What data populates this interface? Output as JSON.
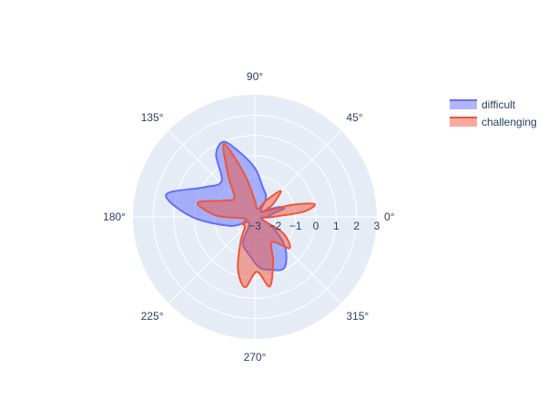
{
  "chart_data": {
    "type": "polar-area",
    "radial_axis": {
      "range": [
        -3,
        3
      ],
      "ticks": [
        -3,
        -2,
        -1,
        0,
        1,
        2,
        3
      ],
      "tick_labels": [
        "−3",
        "−2",
        "−1",
        "0",
        "1",
        "2",
        "3"
      ],
      "angle_deg": 0
    },
    "angular_axis": {
      "ticks_deg": [
        0,
        45,
        90,
        135,
        180,
        225,
        270,
        315
      ],
      "tick_labels": [
        "0°",
        "45°",
        "90°",
        "135°",
        "180°",
        "225°",
        "270°",
        "315°"
      ],
      "direction": "counterclockwise"
    },
    "background_color": "#e5ecf6",
    "grid": true,
    "legend": {
      "placement": "top-right"
    },
    "series": [
      {
        "name": "difficult",
        "line_color": "#636efa",
        "fill_color": "rgba(99,110,250,0.5)",
        "points": [
          {
            "theta": 0,
            "r": -2.4
          },
          {
            "theta": 10,
            "r": -2.1
          },
          {
            "theta": 16,
            "r": -1.5
          },
          {
            "theta": 22,
            "r": -1.7
          },
          {
            "theta": 30,
            "r": -2.3
          },
          {
            "theta": 45,
            "r": -2.6
          },
          {
            "theta": 60,
            "r": -1.9
          },
          {
            "theta": 75,
            "r": -1.5
          },
          {
            "theta": 90,
            "r": -0.6
          },
          {
            "theta": 105,
            "r": 0.4
          },
          {
            "theta": 113,
            "r": 1.0
          },
          {
            "theta": 122,
            "r": 0.6
          },
          {
            "theta": 133,
            "r": -0.6
          },
          {
            "theta": 150,
            "r": -0.1
          },
          {
            "theta": 166,
            "r": 1.5
          },
          {
            "theta": 180,
            "r": 0.1
          },
          {
            "theta": 200,
            "r": -1.7
          },
          {
            "theta": 225,
            "r": -2.6
          },
          {
            "theta": 245,
            "r": -1.6
          },
          {
            "theta": 262,
            "r": -1.1
          },
          {
            "theta": 275,
            "r": -0.5
          },
          {
            "theta": 286,
            "r": -0.3
          },
          {
            "theta": 300,
            "r": -0.1
          },
          {
            "theta": 315,
            "r": -0.9
          },
          {
            "theta": 330,
            "r": -2.0
          },
          {
            "theta": 345,
            "r": -2.7
          }
        ]
      },
      {
        "name": "challenging",
        "line_color": "#ef553b",
        "fill_color": "rgba(239,85,59,0.5)",
        "points": [
          {
            "theta": 0,
            "r": -2.1
          },
          {
            "theta": 6,
            "r": -0.6
          },
          {
            "theta": 12,
            "r": 0.0
          },
          {
            "theta": 18,
            "r": -1.1
          },
          {
            "theta": 27,
            "r": -2.4
          },
          {
            "theta": 35,
            "r": -1.9
          },
          {
            "theta": 45,
            "r": -1.2
          },
          {
            "theta": 55,
            "r": -2.0
          },
          {
            "theta": 70,
            "r": -2.6
          },
          {
            "theta": 90,
            "r": -2.2
          },
          {
            "theta": 104,
            "r": -0.8
          },
          {
            "theta": 113,
            "r": 0.9
          },
          {
            "theta": 123,
            "r": -0.6
          },
          {
            "theta": 136,
            "r": -1.6
          },
          {
            "theta": 150,
            "r": -1.4
          },
          {
            "theta": 166,
            "r": -0.1
          },
          {
            "theta": 178,
            "r": -1.1
          },
          {
            "theta": 190,
            "r": -2.5
          },
          {
            "theta": 208,
            "r": -2.3
          },
          {
            "theta": 225,
            "r": -2.3
          },
          {
            "theta": 240,
            "r": -1.6
          },
          {
            "theta": 252,
            "r": -0.3
          },
          {
            "theta": 262,
            "r": 0.5
          },
          {
            "theta": 272,
            "r": -0.3
          },
          {
            "theta": 282,
            "r": 0.5
          },
          {
            "theta": 292,
            "r": -0.6
          },
          {
            "theta": 304,
            "r": -1.5
          },
          {
            "theta": 318,
            "r": -0.7
          },
          {
            "theta": 330,
            "r": -1.4
          },
          {
            "theta": 342,
            "r": -2.6
          }
        ]
      }
    ]
  }
}
